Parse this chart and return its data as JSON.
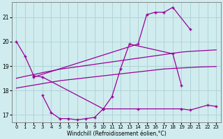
{
  "background_color": "#d0ecee",
  "grid_color": "#b0d4d8",
  "line_color": "#990099",
  "marker": "+",
  "xlim": [
    -0.5,
    23.5
  ],
  "ylim": [
    16.7,
    21.6
  ],
  "xticks": [
    0,
    1,
    2,
    3,
    4,
    5,
    6,
    7,
    8,
    9,
    10,
    11,
    12,
    13,
    14,
    15,
    16,
    17,
    18,
    19,
    20,
    21,
    22,
    23
  ],
  "yticks": [
    17,
    18,
    19,
    20,
    21
  ],
  "xlabel": "Windchill (Refroidissement éolien,°C)",
  "line1_x": [
    0,
    1,
    2,
    3,
    10,
    11,
    12,
    13,
    18,
    19
  ],
  "line1_y": [
    20.0,
    19.4,
    18.6,
    18.55,
    17.25,
    17.75,
    18.9,
    19.9,
    19.5,
    18.2
  ],
  "line2_x": [
    3,
    4,
    5,
    6,
    7,
    8,
    9,
    10,
    14,
    19,
    20,
    22,
    23
  ],
  "line2_y": [
    17.8,
    17.1,
    16.85,
    16.85,
    16.8,
    16.85,
    16.9,
    17.25,
    17.25,
    17.25,
    17.2,
    17.4,
    17.35
  ],
  "line3_x": [
    2,
    14,
    15,
    16,
    17,
    18,
    20
  ],
  "line3_y": [
    18.55,
    19.9,
    21.1,
    21.2,
    21.2,
    21.4,
    20.5
  ],
  "line4_x": [
    0,
    1,
    2,
    3,
    4,
    5,
    6,
    7,
    8,
    9,
    10,
    11,
    12,
    13,
    14,
    15,
    16,
    17,
    18,
    19,
    20,
    21,
    22,
    23
  ],
  "line4_y": [
    18.5,
    18.58,
    18.65,
    18.73,
    18.8,
    18.87,
    18.92,
    18.97,
    19.02,
    19.07,
    19.12,
    19.17,
    19.22,
    19.27,
    19.32,
    19.37,
    19.42,
    19.47,
    19.52,
    19.57,
    19.6,
    19.62,
    19.64,
    19.66
  ],
  "line5_x": [
    0,
    1,
    2,
    3,
    4,
    5,
    6,
    7,
    8,
    9,
    10,
    11,
    12,
    13,
    14,
    15,
    16,
    17,
    18,
    19,
    20,
    21,
    22,
    23
  ],
  "line5_y": [
    18.1,
    18.16,
    18.22,
    18.28,
    18.34,
    18.4,
    18.44,
    18.48,
    18.52,
    18.56,
    18.6,
    18.64,
    18.68,
    18.72,
    18.76,
    18.8,
    18.84,
    18.88,
    18.9,
    18.92,
    18.94,
    18.96,
    18.97,
    18.98
  ]
}
